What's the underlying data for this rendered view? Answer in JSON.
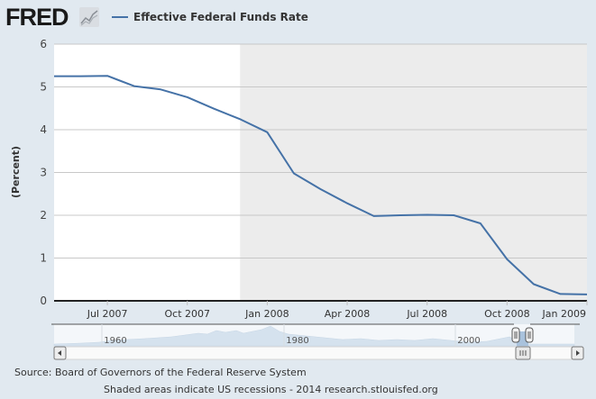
{
  "header": {
    "logo_text": "FRED",
    "logo_icon": "mini-chart-icon",
    "legend_label": "Effective Federal Funds Rate"
  },
  "colors": {
    "series": "#4572a7",
    "background": "#e1e9f0",
    "plot_bg": "#ffffff",
    "recession": "#ececec",
    "grid": "#c8c8c8"
  },
  "chart_data": {
    "type": "line",
    "title": "Effective Federal Funds Rate",
    "xlabel": "",
    "ylabel": "(Percent)",
    "ylim": [
      0,
      6
    ],
    "yticks": [
      "0",
      "1",
      "2",
      "3",
      "4",
      "5",
      "6"
    ],
    "xticks": [
      "Jul 2007",
      "Oct 2007",
      "Jan 2008",
      "Apr 2008",
      "Jul 2008",
      "Oct 2008",
      "Jan 2009"
    ],
    "grid": true,
    "legend": "top-left",
    "recession_start": "Dec 2007",
    "series": [
      {
        "name": "Effective Federal Funds Rate",
        "x": [
          "May 2007",
          "Jun 2007",
          "Jul 2007",
          "Aug 2007",
          "Sep 2007",
          "Oct 2007",
          "Nov 2007",
          "Dec 2007",
          "Jan 2008",
          "Feb 2008",
          "Mar 2008",
          "Apr 2008",
          "May 2008",
          "Jun 2008",
          "Jul 2008",
          "Aug 2008",
          "Sep 2008",
          "Oct 2008",
          "Nov 2008",
          "Dec 2008",
          "Jan 2009"
        ],
        "values": [
          5.25,
          5.25,
          5.26,
          5.02,
          4.94,
          4.76,
          4.49,
          4.24,
          3.94,
          2.98,
          2.61,
          2.28,
          1.98,
          2.0,
          2.01,
          2.0,
          1.81,
          0.97,
          0.39,
          0.16,
          0.15
        ]
      }
    ]
  },
  "navigator": {
    "years": [
      "1960",
      "1980",
      "2000"
    ],
    "left_arrow": "scroll-left-icon",
    "right_arrow": "scroll-right-icon"
  },
  "footer": {
    "source": "Source: Board of Governors of the Federal Reserve System",
    "note": "Shaded areas indicate US recessions - 2014 research.stlouisfed.org"
  }
}
